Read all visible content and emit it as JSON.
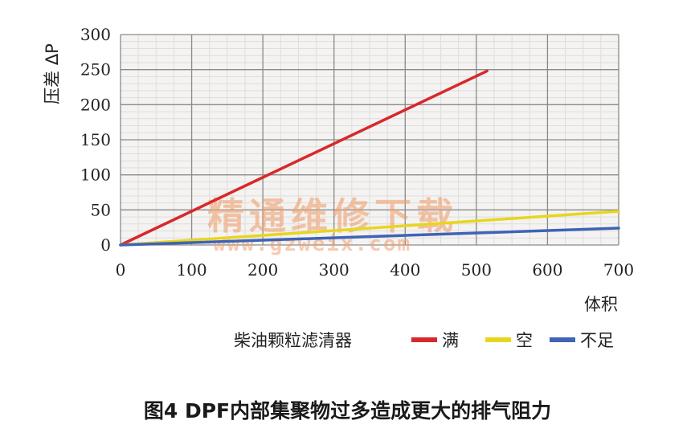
{
  "caption": "图4 DPF内部集聚物过多造成更大的排气阻力",
  "watermark": {
    "text": "精通维修下载",
    "url": "www.gzweix.com"
  },
  "chart_data": {
    "type": "line",
    "ylabel": "压差 ΔP",
    "xlabel": "体积",
    "xlim": [
      0,
      700
    ],
    "ylim": [
      0,
      300
    ],
    "xticks": [
      0,
      100,
      200,
      300,
      400,
      500,
      600,
      700
    ],
    "yticks": [
      0,
      50,
      100,
      150,
      200,
      250,
      300
    ],
    "grid": true,
    "legend": {
      "title": "柴油颗粒滤清器",
      "position": "bottom"
    },
    "series": [
      {
        "name": "满",
        "color": "#d8282b",
        "x": [
          0,
          515
        ],
        "y": [
          0,
          248
        ]
      },
      {
        "name": "空",
        "color": "#e8d51e",
        "x": [
          0,
          700
        ],
        "y": [
          0,
          48
        ]
      },
      {
        "name": "不足",
        "color": "#3f63b5",
        "x": [
          0,
          700
        ],
        "y": [
          0,
          24
        ]
      }
    ]
  }
}
